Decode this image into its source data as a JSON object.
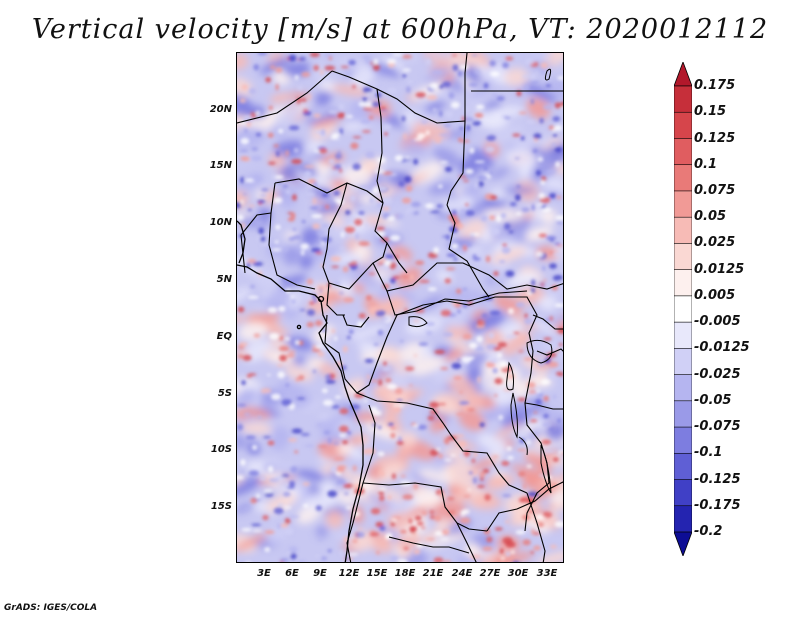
{
  "title": "Vertical velocity [m/s] at 600hPa, VT: 2020012112",
  "credit": "GrADS: IGES/COLA",
  "lat_axis": [
    "20N",
    "15N",
    "10N",
    "5N",
    "EQ",
    "5S",
    "10S",
    "15S"
  ],
  "lon_axis": [
    "3E",
    "6E",
    "9E",
    "12E",
    "15E",
    "18E",
    "21E",
    "24E",
    "27E",
    "30E",
    "33E"
  ],
  "colorbar": {
    "labels": [
      "0.175",
      "0.15",
      "0.125",
      "0.1",
      "0.075",
      "0.05",
      "0.025",
      "0.0125",
      "0.005",
      "-0.005",
      "-0.0125",
      "-0.025",
      "-0.05",
      "-0.075",
      "-0.1",
      "-0.125",
      "-0.175",
      "-0.2"
    ],
    "colors": [
      "#b2182b",
      "#c62f3a",
      "#d6454b",
      "#e05d60",
      "#e97a78",
      "#f19a96",
      "#f7bbb6",
      "#fad8d3",
      "#fdf0ee",
      "#ffffff",
      "#e8e8fb",
      "#d0d0f6",
      "#b5b5f0",
      "#9a9ae8",
      "#7d7de0",
      "#5f5fd5",
      "#4040c6",
      "#2424b0",
      "#0d0d95"
    ]
  },
  "map": {
    "background_color": "#c8c8f2",
    "region": "Central Africa, 0E-35E, 19S-24N"
  }
}
